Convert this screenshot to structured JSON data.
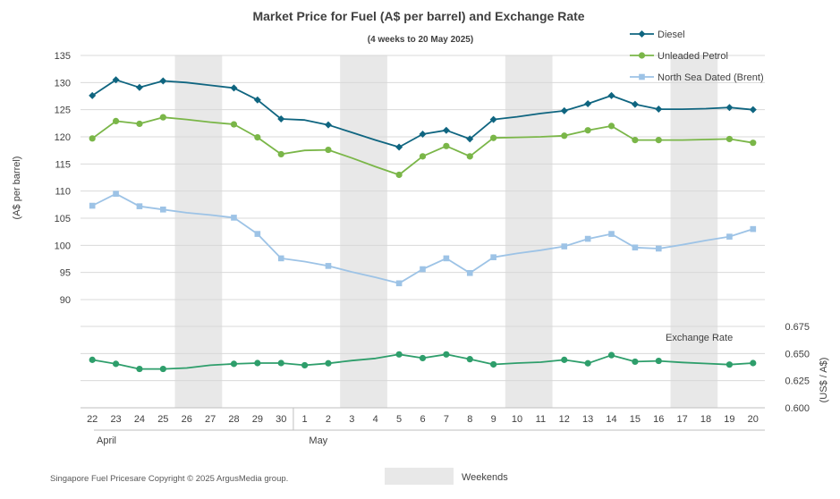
{
  "chart_data": {
    "type": "line",
    "title": "Market Price for Fuel (A$ per barrel) and Exchange Rate",
    "subtitle": "(4 weeks to 20 May 2025)",
    "ylabel_left": "(A$ per barrel)",
    "ylabel_right": "(US$ / A$)",
    "left_axis": {
      "min": 90,
      "max": 135,
      "ticks": [
        90,
        95,
        100,
        105,
        110,
        115,
        120,
        125,
        130,
        135
      ]
    },
    "right_axis": {
      "min": 0.6,
      "max": 0.675,
      "ticks": [
        "0.600",
        "0.625",
        "0.650",
        "0.675"
      ]
    },
    "categories": [
      "22",
      "23",
      "24",
      "25",
      "26",
      "27",
      "28",
      "29",
      "30",
      "1",
      "2",
      "3",
      "4",
      "5",
      "6",
      "7",
      "8",
      "9",
      "10",
      "11",
      "12",
      "13",
      "14",
      "15",
      "16",
      "17",
      "18",
      "19",
      "20"
    ],
    "month_labels": [
      {
        "label": "April",
        "start_index": 0
      },
      {
        "label": "May",
        "start_index": 9
      }
    ],
    "weekends": [
      [
        4,
        5
      ],
      [
        11,
        12
      ],
      [
        18,
        19
      ],
      [
        25,
        26
      ]
    ],
    "series": [
      {
        "name": "Diesel",
        "color": "#0f6580",
        "marker": "diamond",
        "values": [
          127.6,
          130.5,
          129.1,
          130.3,
          null,
          null,
          129.0,
          126.8,
          123.3,
          null,
          122.2,
          null,
          null,
          118.1,
          120.5,
          121.2,
          119.6,
          123.2,
          null,
          null,
          124.8,
          126.1,
          127.6,
          126.0,
          125.1,
          null,
          null,
          125.4,
          125.0
        ],
        "path_values": [
          127.6,
          130.5,
          129.1,
          130.3,
          130.0,
          129.5,
          129.0,
          126.8,
          123.3,
          123.1,
          122.2,
          120.8,
          119.4,
          118.1,
          120.5,
          121.2,
          119.6,
          123.2,
          123.7,
          124.3,
          124.8,
          126.1,
          127.6,
          126.0,
          125.1,
          125.1,
          125.2,
          125.4,
          125.0
        ]
      },
      {
        "name": "Unleaded Petrol",
        "color": "#7ab648",
        "marker": "circle",
        "values": [
          119.7,
          122.9,
          122.4,
          123.6,
          null,
          null,
          122.3,
          119.9,
          116.8,
          null,
          117.6,
          null,
          null,
          113.0,
          116.4,
          118.3,
          116.4,
          119.8,
          null,
          null,
          120.2,
          121.2,
          122.0,
          119.4,
          119.4,
          null,
          null,
          119.6,
          118.9
        ],
        "path_values": [
          119.7,
          122.9,
          122.4,
          123.6,
          123.2,
          122.7,
          122.3,
          119.9,
          116.8,
          117.5,
          117.6,
          116.1,
          114.5,
          113.0,
          116.4,
          118.3,
          116.4,
          119.8,
          119.9,
          120.0,
          120.2,
          121.2,
          122.0,
          119.4,
          119.4,
          119.4,
          119.5,
          119.6,
          118.9
        ]
      },
      {
        "name": "North Sea Dated (Brent)",
        "color": "#9dc3e6",
        "marker": "square",
        "values": [
          107.3,
          109.5,
          107.2,
          106.6,
          null,
          null,
          105.1,
          102.1,
          97.6,
          null,
          96.2,
          null,
          null,
          93.0,
          95.6,
          97.6,
          94.9,
          97.8,
          null,
          null,
          99.8,
          101.2,
          102.1,
          99.6,
          99.4,
          null,
          null,
          101.6,
          103.0
        ],
        "path_values": [
          107.3,
          109.5,
          107.2,
          106.6,
          106.0,
          105.6,
          105.1,
          102.1,
          97.6,
          97.0,
          96.2,
          95.1,
          94.1,
          93.0,
          95.6,
          97.6,
          94.9,
          97.8,
          98.5,
          99.1,
          99.8,
          101.2,
          102.1,
          99.6,
          99.4,
          100.1,
          100.9,
          101.6,
          103.0
        ]
      },
      {
        "name": "Exchange Rate",
        "color": "#2e9e6b",
        "marker": "circle",
        "axis": "right",
        "values": [
          0.6442,
          0.6405,
          0.6358,
          0.6358,
          null,
          null,
          0.6405,
          0.6412,
          0.6412,
          0.6392,
          0.641,
          null,
          null,
          0.6492,
          0.6458,
          0.6492,
          0.6448,
          0.64,
          null,
          null,
          0.6442,
          0.641,
          0.6485,
          0.6425,
          0.6432,
          null,
          null,
          0.6398,
          0.6412
        ],
        "path_values": [
          0.6442,
          0.6405,
          0.6358,
          0.6358,
          0.6367,
          0.6392,
          0.6405,
          0.6412,
          0.6412,
          0.6392,
          0.641,
          0.6435,
          0.6455,
          0.6492,
          0.6458,
          0.6492,
          0.6448,
          0.64,
          0.6412,
          0.642,
          0.6442,
          0.641,
          0.6485,
          0.6425,
          0.6432,
          0.6418,
          0.6408,
          0.6398,
          0.6412
        ]
      }
    ],
    "exchange_rate_label": "Exchange Rate",
    "weekend_legend": "Weekends",
    "copyright": "Singapore Fuel Pricesare Copyright © 2025 ArgusMedia group."
  }
}
